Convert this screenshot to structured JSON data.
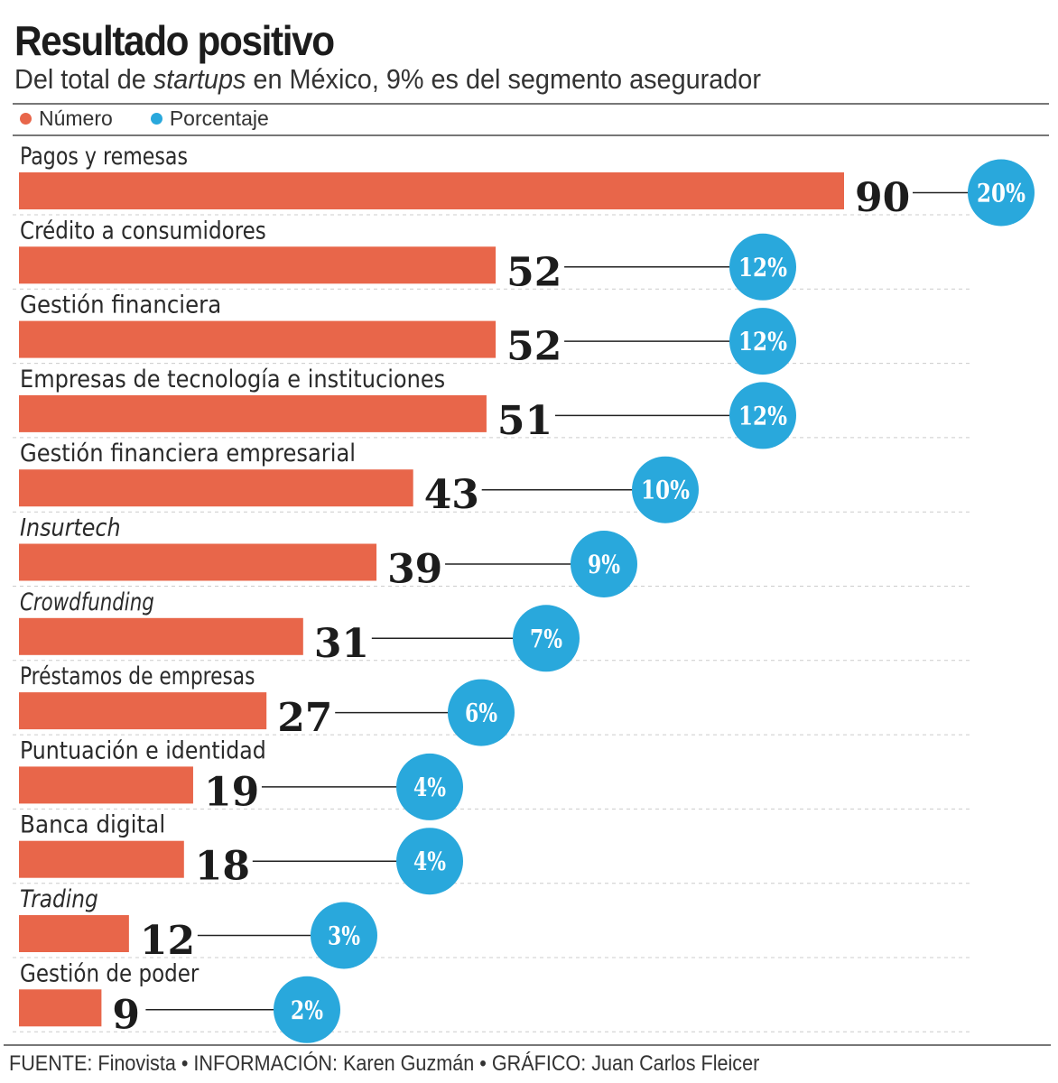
{
  "title": "Resultado positivo",
  "subtitle": {
    "before": "Del total de ",
    "italic": "startups",
    "after": " en México, 9% es del segmento asegurador"
  },
  "footer": "FUENTE: Finovista • INFORMACIÓN: Karen Guzmán • GRÁFICO: Juan Carlos Fleicer",
  "colors": {
    "number": "#e8664a",
    "percent": "#29a8dc"
  },
  "chart_data": {
    "type": "bar",
    "orientation": "horizontal",
    "legend": {
      "placement": "top-left",
      "entries": [
        "Número",
        "Porcentaje"
      ]
    },
    "categories": [
      "Pagos y remesas",
      "Crédito a consumidores",
      "Gestión financiera",
      "Empresas de tecnología e instituciones",
      "Gestión financiera empresarial",
      "Insurtech",
      "Crowdfunding",
      "Préstamos de empresas",
      "Puntuación e identidad",
      "Banca digital",
      "Trading",
      "Gestión de poder"
    ],
    "italic_categories": [
      "Insurtech",
      "Crowdfunding",
      "Trading"
    ],
    "series": [
      {
        "name": "Número",
        "values": [
          90,
          52,
          52,
          51,
          43,
          39,
          31,
          27,
          19,
          18,
          12,
          9
        ]
      },
      {
        "name": "Porcentaje",
        "values": [
          "20%",
          "12%",
          "12%",
          "12%",
          "10%",
          "9%",
          "7%",
          "6%",
          "4%",
          "4%",
          "3%",
          "2%"
        ]
      }
    ],
    "xlim": [
      0,
      90
    ],
    "grid": false
  }
}
